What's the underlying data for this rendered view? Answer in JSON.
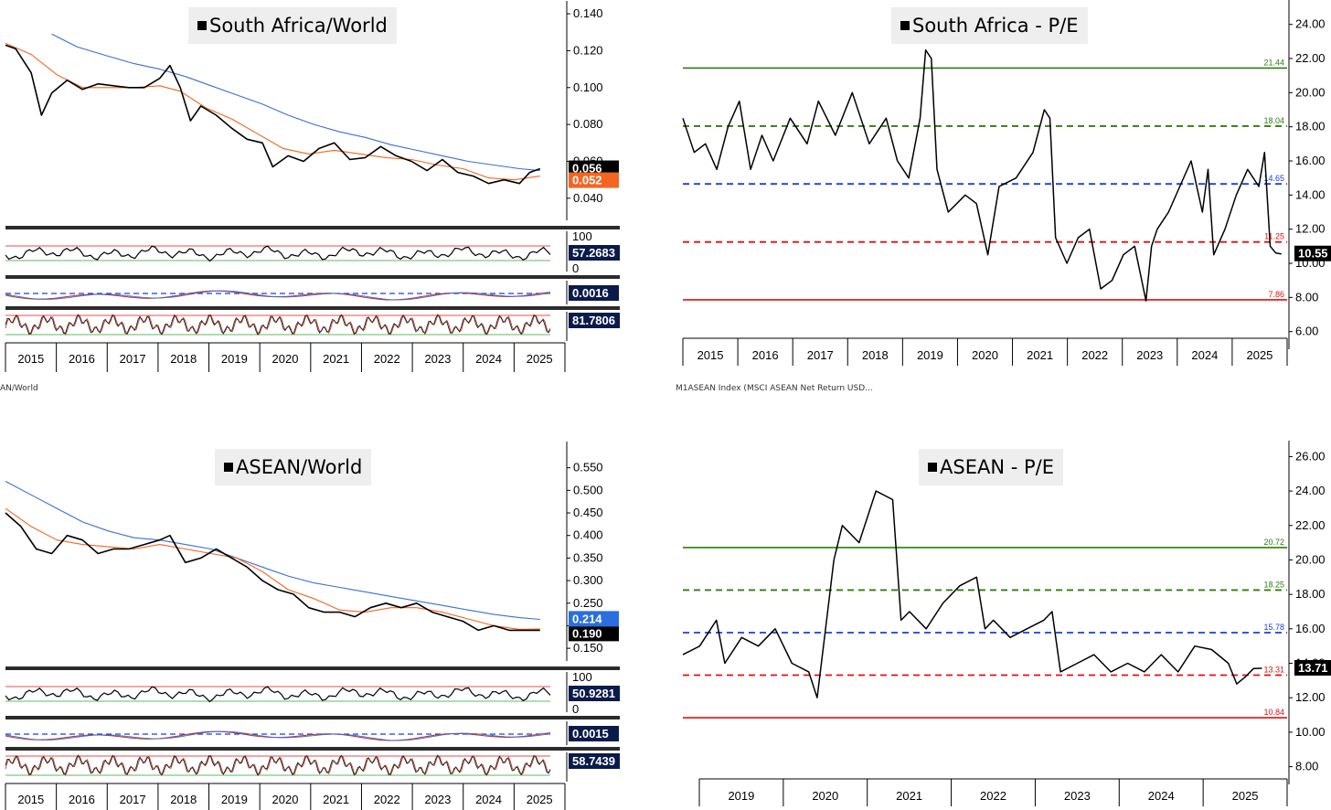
{
  "panels": {
    "sa_world": {
      "title": "South Africa/World"
    },
    "sa_pe": {
      "title": "South Africa - P/E"
    },
    "asean_world": {
      "title": "ASEAN/World"
    },
    "asean_pe": {
      "title": "ASEAN - P/E"
    }
  },
  "captions": {
    "left_mid": "AN/World",
    "right_mid": "M1ASEAN Index (MSCI ASEAN Net Return USD..."
  },
  "colors": {
    "price": "#000000",
    "ma_orange": "#f26522",
    "ma_blue": "#3b6fd4",
    "green": "#2e7d0f",
    "blue_dash": "#1a3fe0",
    "red": "#e01010",
    "tag_black": "#000000",
    "tag_navy": "#0a1a4a",
    "tag_blue": "#2a6ee0",
    "tag_orange": "#f26522"
  },
  "chart_data": [
    {
      "id": "sa_world",
      "type": "line",
      "title": "South Africa/World",
      "xlim": [
        2014.8,
        2025.4
      ],
      "x_tick_labels": [
        "2015",
        "2016",
        "2017",
        "2018",
        "2019",
        "2020",
        "2021",
        "2022",
        "2023",
        "2024",
        "2025"
      ],
      "ylim": [
        0.03,
        0.145
      ],
      "y_ticks": [
        "0.140",
        "0.120",
        "0.100",
        "0.080",
        "0.060",
        "0.040"
      ],
      "series": [
        {
          "role": "price",
          "x": [
            2014.8,
            2015.0,
            2015.3,
            2015.5,
            2015.7,
            2016.0,
            2016.3,
            2016.6,
            2016.9,
            2017.2,
            2017.5,
            2017.8,
            2018.0,
            2018.2,
            2018.4,
            2018.6,
            2018.9,
            2019.2,
            2019.5,
            2019.8,
            2020.0,
            2020.3,
            2020.6,
            2020.9,
            2021.2,
            2021.5,
            2021.8,
            2022.1,
            2022.4,
            2022.7,
            2023.0,
            2023.3,
            2023.6,
            2023.9,
            2024.2,
            2024.5,
            2024.8,
            2025.0,
            2025.2
          ],
          "y": [
            0.123,
            0.121,
            0.108,
            0.085,
            0.097,
            0.104,
            0.099,
            0.102,
            0.101,
            0.1,
            0.1,
            0.105,
            0.112,
            0.1,
            0.082,
            0.09,
            0.085,
            0.078,
            0.072,
            0.07,
            0.057,
            0.063,
            0.06,
            0.067,
            0.07,
            0.061,
            0.062,
            0.068,
            0.063,
            0.06,
            0.055,
            0.061,
            0.054,
            0.052,
            0.048,
            0.05,
            0.048,
            0.054,
            0.056
          ]
        },
        {
          "role": "ma_orange",
          "x": [
            2014.8,
            2015.3,
            2015.8,
            2016.3,
            2016.8,
            2017.3,
            2017.8,
            2018.2,
            2018.7,
            2019.2,
            2019.7,
            2020.2,
            2020.7,
            2021.2,
            2021.7,
            2022.2,
            2022.7,
            2023.2,
            2023.7,
            2024.2,
            2024.7,
            2025.2
          ],
          "y": [
            0.124,
            0.118,
            0.107,
            0.1,
            0.1,
            0.1,
            0.101,
            0.098,
            0.089,
            0.083,
            0.075,
            0.067,
            0.064,
            0.066,
            0.064,
            0.062,
            0.061,
            0.058,
            0.056,
            0.051,
            0.05,
            0.052
          ]
        },
        {
          "role": "ma_blue",
          "x": [
            2015.7,
            2016.2,
            2016.8,
            2017.3,
            2017.8,
            2018.3,
            2018.8,
            2019.3,
            2019.8,
            2020.3,
            2020.8,
            2021.3,
            2021.8,
            2022.3,
            2022.8,
            2023.3,
            2023.8,
            2024.3,
            2024.8,
            2025.2
          ],
          "y": [
            0.129,
            0.122,
            0.117,
            0.113,
            0.11,
            0.106,
            0.101,
            0.096,
            0.091,
            0.085,
            0.08,
            0.076,
            0.073,
            0.069,
            0.066,
            0.063,
            0.06,
            0.058,
            0.056,
            0.055
          ]
        }
      ],
      "value_tags": [
        "0.056",
        "0.052"
      ],
      "indicators": [
        {
          "name": "RSI",
          "value": "57.2683",
          "ticks": [
            "100",
            "0"
          ]
        },
        {
          "name": "MACD",
          "value": "0.0016"
        },
        {
          "name": "Stochastic",
          "value": "81.7806"
        }
      ]
    },
    {
      "id": "sa_pe",
      "type": "line",
      "title": "South Africa - P/E",
      "xlim": [
        2014.6,
        2025.3
      ],
      "x_tick_labels": [
        "2015",
        "2016",
        "2017",
        "2018",
        "2019",
        "2020",
        "2021",
        "2022",
        "2023",
        "2024",
        "2025"
      ],
      "ylim": [
        5.5,
        25
      ],
      "y_ticks": [
        "24.00",
        "22.00",
        "20.00",
        "18.00",
        "16.00",
        "14.00",
        "12.00",
        "10.00",
        "8.00",
        "6.00"
      ],
      "series": [
        {
          "role": "pe",
          "x": [
            2014.6,
            2014.8,
            2015.0,
            2015.2,
            2015.4,
            2015.6,
            2015.8,
            2016.0,
            2016.2,
            2016.5,
            2016.8,
            2017.0,
            2017.3,
            2017.6,
            2017.9,
            2018.2,
            2018.4,
            2018.6,
            2018.8,
            2018.9,
            2019.0,
            2019.1,
            2019.3,
            2019.6,
            2019.8,
            2020.0,
            2020.2,
            2020.5,
            2020.8,
            2021.0,
            2021.1,
            2021.2,
            2021.4,
            2021.6,
            2021.8,
            2022.0,
            2022.2,
            2022.4,
            2022.6,
            2022.8,
            2022.9,
            2023.0,
            2023.2,
            2023.4,
            2023.6,
            2023.8,
            2023.9,
            2024.0,
            2024.2,
            2024.4,
            2024.6,
            2024.8,
            2024.9,
            2025.0,
            2025.1,
            2025.2
          ],
          "y": [
            18.5,
            16.5,
            17.0,
            15.5,
            18.0,
            19.5,
            15.5,
            17.5,
            16.0,
            18.5,
            17.0,
            19.5,
            17.5,
            20.0,
            17.0,
            18.5,
            16.0,
            15.0,
            18.5,
            22.5,
            22.0,
            15.5,
            13.0,
            14.0,
            13.5,
            10.5,
            14.5,
            15.0,
            16.5,
            19.0,
            18.5,
            11.5,
            10.0,
            11.5,
            12.0,
            8.5,
            9.0,
            10.5,
            11.0,
            7.8,
            11.0,
            12.0,
            13.0,
            14.5,
            16.0,
            13.0,
            15.5,
            10.5,
            12.0,
            14.0,
            15.5,
            14.5,
            16.5,
            11.0,
            10.6,
            10.55
          ]
        }
      ],
      "levels": [
        {
          "value": 21.44,
          "label": "21.44",
          "style": "solid",
          "color": "green"
        },
        {
          "value": 18.04,
          "label": "18.04",
          "style": "dashed",
          "color": "green"
        },
        {
          "value": 14.65,
          "label": "14.65",
          "style": "dashed",
          "color": "blue"
        },
        {
          "value": 11.25,
          "label": "11.25",
          "style": "dashed",
          "color": "red"
        },
        {
          "value": 7.86,
          "label": "7.86",
          "style": "solid",
          "color": "red"
        }
      ],
      "last_value": "10.55"
    },
    {
      "id": "asean_world",
      "type": "line",
      "title": "ASEAN/World",
      "xlim": [
        2014.8,
        2025.4
      ],
      "x_tick_labels": [
        "2015",
        "2016",
        "2017",
        "2018",
        "2019",
        "2020",
        "2021",
        "2022",
        "2023",
        "2024",
        "2025"
      ],
      "ylim": [
        0.13,
        0.6
      ],
      "y_ticks": [
        "0.550",
        "0.500",
        "0.450",
        "0.400",
        "0.350",
        "0.300",
        "0.250",
        "0.200",
        "0.150"
      ],
      "series": [
        {
          "role": "price",
          "x": [
            2014.8,
            2015.1,
            2015.4,
            2015.7,
            2016.0,
            2016.3,
            2016.6,
            2016.9,
            2017.2,
            2017.5,
            2017.8,
            2018.0,
            2018.3,
            2018.6,
            2018.9,
            2019.2,
            2019.5,
            2019.8,
            2020.1,
            2020.4,
            2020.7,
            2021.0,
            2021.3,
            2021.6,
            2021.9,
            2022.2,
            2022.5,
            2022.8,
            2023.1,
            2023.4,
            2023.7,
            2024.0,
            2024.3,
            2024.6,
            2024.9,
            2025.2
          ],
          "y": [
            0.45,
            0.42,
            0.37,
            0.36,
            0.4,
            0.39,
            0.36,
            0.37,
            0.37,
            0.38,
            0.39,
            0.4,
            0.34,
            0.35,
            0.37,
            0.35,
            0.33,
            0.3,
            0.28,
            0.27,
            0.24,
            0.23,
            0.23,
            0.22,
            0.24,
            0.25,
            0.24,
            0.25,
            0.23,
            0.22,
            0.21,
            0.19,
            0.2,
            0.19,
            0.19,
            0.19
          ]
        },
        {
          "role": "ma_orange",
          "x": [
            2014.8,
            2015.3,
            2015.8,
            2016.3,
            2016.8,
            2017.3,
            2017.8,
            2018.3,
            2018.8,
            2019.3,
            2019.8,
            2020.3,
            2020.8,
            2021.3,
            2021.8,
            2022.3,
            2022.8,
            2023.3,
            2023.8,
            2024.3,
            2024.8,
            2025.2
          ],
          "y": [
            0.46,
            0.42,
            0.39,
            0.38,
            0.375,
            0.37,
            0.38,
            0.37,
            0.36,
            0.35,
            0.32,
            0.28,
            0.26,
            0.235,
            0.23,
            0.24,
            0.24,
            0.23,
            0.215,
            0.2,
            0.192,
            0.193
          ]
        },
        {
          "role": "ma_blue",
          "x": [
            2014.8,
            2015.3,
            2015.8,
            2016.3,
            2016.8,
            2017.3,
            2017.8,
            2018.3,
            2018.8,
            2019.3,
            2019.8,
            2020.3,
            2020.8,
            2021.3,
            2021.8,
            2022.3,
            2022.8,
            2023.3,
            2023.8,
            2024.3,
            2024.8,
            2025.2
          ],
          "y": [
            0.52,
            0.49,
            0.46,
            0.43,
            0.41,
            0.395,
            0.39,
            0.38,
            0.37,
            0.35,
            0.33,
            0.31,
            0.295,
            0.285,
            0.275,
            0.265,
            0.255,
            0.245,
            0.235,
            0.225,
            0.218,
            0.214
          ]
        }
      ],
      "value_tags": [
        "0.214",
        "0.190"
      ],
      "indicators": [
        {
          "name": "RSI",
          "value": "50.9281",
          "ticks": [
            "100",
            "0"
          ]
        },
        {
          "name": "MACD",
          "value": "0.0015"
        },
        {
          "name": "Stochastic",
          "value": "58.7439"
        }
      ]
    },
    {
      "id": "asean_pe",
      "type": "line",
      "title": "ASEAN - P/E",
      "xlim": [
        2018.3,
        2025.5
      ],
      "x_tick_labels": [
        "2019",
        "2020",
        "2021",
        "2022",
        "2023",
        "2024",
        "2025"
      ],
      "ylim": [
        7.5,
        26.5
      ],
      "y_ticks": [
        "26.00",
        "24.00",
        "22.00",
        "20.00",
        "18.00",
        "16.00",
        "14.00",
        "12.00",
        "10.00",
        "8.00"
      ],
      "series": [
        {
          "role": "pe",
          "x": [
            2018.3,
            2018.5,
            2018.7,
            2018.8,
            2019.0,
            2019.2,
            2019.4,
            2019.6,
            2019.8,
            2019.9,
            2020.0,
            2020.1,
            2020.2,
            2020.4,
            2020.6,
            2020.8,
            2020.9,
            2021.0,
            2021.2,
            2021.4,
            2021.6,
            2021.8,
            2021.9,
            2022.0,
            2022.2,
            2022.4,
            2022.6,
            2022.7,
            2022.8,
            2023.0,
            2023.2,
            2023.4,
            2023.6,
            2023.8,
            2024.0,
            2024.2,
            2024.4,
            2024.6,
            2024.8,
            2024.9,
            2025.0,
            2025.1,
            2025.2
          ],
          "y": [
            14.5,
            15.0,
            16.5,
            14.0,
            15.5,
            15.0,
            16.0,
            14.0,
            13.5,
            12.0,
            16.0,
            20.0,
            22.0,
            21.0,
            24.0,
            23.5,
            16.5,
            17.0,
            16.0,
            17.5,
            18.5,
            19.0,
            16.0,
            16.5,
            15.5,
            16.0,
            16.5,
            17.0,
            13.5,
            14.0,
            14.5,
            13.5,
            14.0,
            13.5,
            14.5,
            13.5,
            15.0,
            14.8,
            14.0,
            12.8,
            13.2,
            13.7,
            13.71
          ]
        }
      ],
      "levels": [
        {
          "value": 20.72,
          "label": "20.72",
          "style": "solid",
          "color": "green"
        },
        {
          "value": 18.25,
          "label": "18.25",
          "style": "dashed",
          "color": "green"
        },
        {
          "value": 15.78,
          "label": "15.78",
          "style": "dashed",
          "color": "blue"
        },
        {
          "value": 13.31,
          "label": "13.31",
          "style": "dashed",
          "color": "red"
        },
        {
          "value": 10.84,
          "label": "10.84",
          "style": "solid",
          "color": "red"
        }
      ],
      "last_value": "13.71"
    }
  ]
}
